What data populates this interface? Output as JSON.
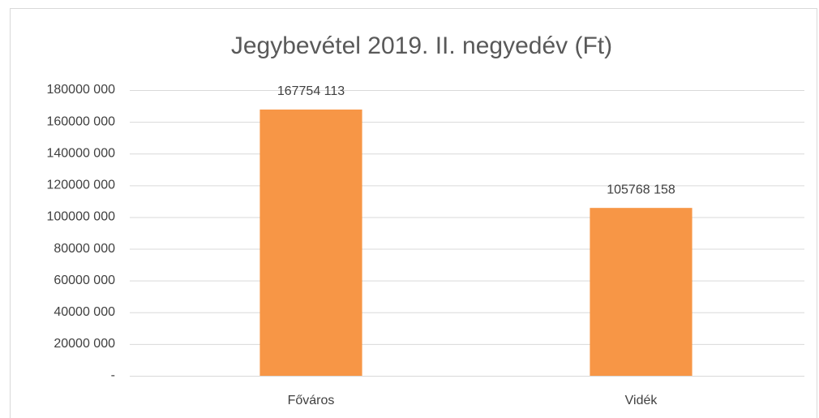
{
  "chart_data": {
    "type": "bar",
    "title": "Jegybevétel 2019. II. negyedév (Ft)",
    "categories": [
      "Főváros",
      "Vidék"
    ],
    "values": [
      167754113,
      105768158
    ],
    "value_labels": [
      "167754 113",
      "105768 158"
    ],
    "color": "#f79646",
    "ylim": [
      0,
      180000000
    ],
    "yticks": [
      {
        "value": 0,
        "label": "-"
      },
      {
        "value": 20000000,
        "label": "20000 000"
      },
      {
        "value": 40000000,
        "label": "40000 000"
      },
      {
        "value": 60000000,
        "label": "60000 000"
      },
      {
        "value": 80000000,
        "label": "80000 000"
      },
      {
        "value": 100000000,
        "label": "100000 000"
      },
      {
        "value": 120000000,
        "label": "120000 000"
      },
      {
        "value": 140000000,
        "label": "140000 000"
      },
      {
        "value": 160000000,
        "label": "160000 000"
      },
      {
        "value": 180000000,
        "label": "180000 000"
      }
    ],
    "grid": true
  }
}
